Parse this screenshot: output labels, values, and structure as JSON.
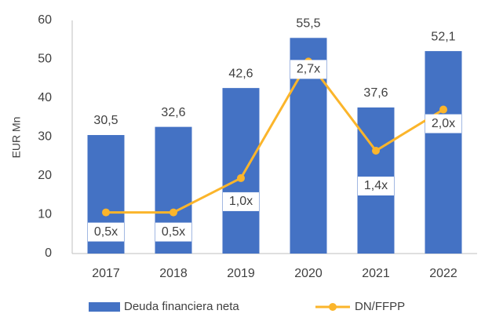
{
  "chart_data": {
    "type": "bar_line",
    "y_axis_label": "EUR Mn",
    "categories": [
      "2017",
      "2018",
      "2019",
      "2020",
      "2021",
      "2022"
    ],
    "series": [
      {
        "name": "Deuda financiera neta",
        "type": "bar",
        "color": "#4472c4",
        "values": [
          30.5,
          32.6,
          42.6,
          55.5,
          37.6,
          52.1
        ],
        "value_labels": [
          "30,5",
          "32,6",
          "42,6",
          "55,5",
          "37,6",
          "52,1"
        ]
      },
      {
        "name": "DN/FFPP",
        "type": "line",
        "axis": "y2",
        "color": "#fbb52b",
        "values": [
          0.5,
          0.5,
          1.0,
          2.7,
          1.4,
          2.0
        ],
        "value_labels": [
          "0,5x",
          "0,5x",
          "1,0x",
          "2,7x",
          "1,4x",
          "2,0x"
        ]
      }
    ],
    "ylim": [
      0,
      60
    ],
    "yticks": [
      0,
      10,
      20,
      30,
      40,
      50,
      60
    ],
    "y2lim": [
      -0.1,
      3.3
    ],
    "grid": false,
    "legend": "bottom"
  }
}
